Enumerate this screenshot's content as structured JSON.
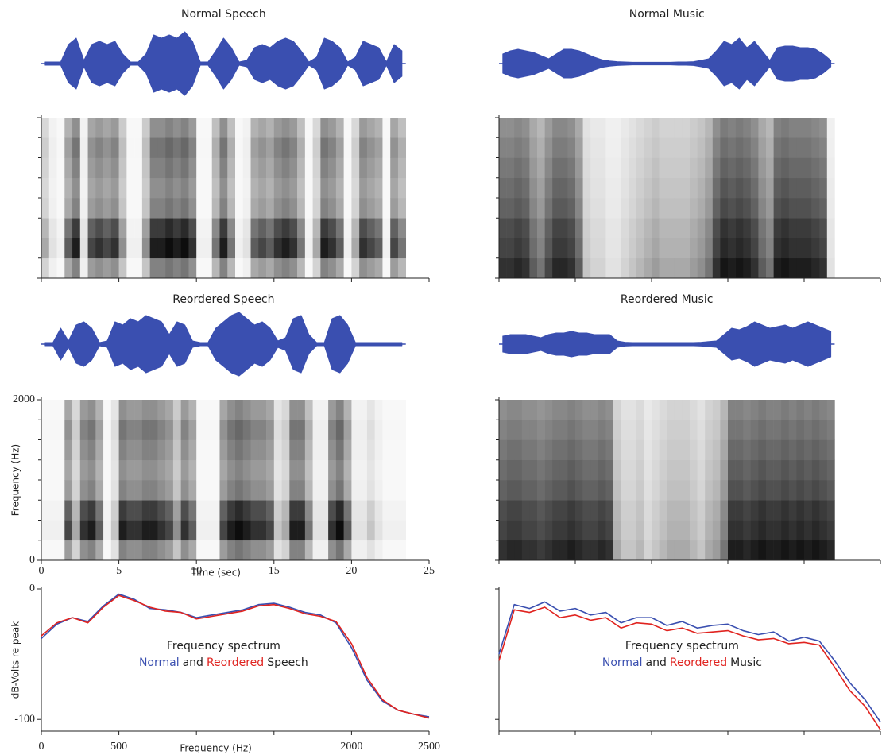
{
  "chart_data": [
    {
      "type": "waveform-spectrogram",
      "title": "Normal Speech",
      "color": "#3a4fb0",
      "time": [
        0,
        0.5,
        1,
        1.5,
        2,
        2.5,
        3,
        3.5,
        4,
        4.5,
        5,
        5.5,
        6,
        6.5,
        7,
        7.5,
        8,
        8.5,
        9,
        9.5,
        10,
        10.5,
        11,
        11.5,
        12,
        12.5,
        13,
        13.5,
        14,
        14.5,
        15,
        15.5,
        16,
        16.5,
        17,
        17.5,
        18,
        18.5,
        19,
        19.5,
        20,
        20.5,
        21,
        21.5,
        22,
        22.5,
        23
      ],
      "envelope": [
        0.05,
        0.05,
        0.05,
        0.6,
        0.8,
        0.1,
        0.6,
        0.7,
        0.6,
        0.7,
        0.3,
        0.05,
        0.05,
        0.3,
        0.9,
        0.8,
        0.9,
        0.8,
        1,
        0.7,
        0.05,
        0.05,
        0.4,
        0.8,
        0.5,
        0.05,
        0.1,
        0.5,
        0.6,
        0.5,
        0.7,
        0.8,
        0.7,
        0.4,
        0.05,
        0.2,
        0.8,
        0.7,
        0.5,
        0.05,
        0.2,
        0.7,
        0.6,
        0.5,
        0.05,
        0.6,
        0.4
      ],
      "intensity": [
        0.3,
        0.1,
        0.05,
        0.6,
        0.9,
        0.1,
        0.7,
        0.8,
        0.7,
        0.8,
        0.4,
        0.05,
        0.05,
        0.4,
        0.9,
        0.9,
        1,
        0.9,
        1,
        0.8,
        0.05,
        0.05,
        0.5,
        0.9,
        0.5,
        0.05,
        0.1,
        0.6,
        0.7,
        0.6,
        0.8,
        0.9,
        0.8,
        0.5,
        0.05,
        0.3,
        0.9,
        0.8,
        0.6,
        0.05,
        0.3,
        0.8,
        0.7,
        0.6,
        0.05,
        0.7,
        0.5
      ],
      "freq": [
        125,
        375,
        625,
        875,
        1125,
        1375,
        1625,
        1875
      ],
      "profile": [
        0.45,
        0.9,
        0.75,
        0.45,
        0.4,
        0.45,
        0.5,
        0.4
      ],
      "xlim": [
        0,
        25
      ],
      "ylim": [
        0,
        2000
      ],
      "xticks": [
        0,
        5,
        10,
        15,
        20,
        25
      ],
      "yticks": [
        0,
        2000
      ],
      "minor_yticks": [
        250,
        500,
        750,
        1000,
        1250,
        1500,
        1750
      ],
      "tick_labels": false
    },
    {
      "type": "waveform-spectrogram",
      "title": "Reordered Speech",
      "color": "#3a4fb0",
      "xlabel": "Time (sec)",
      "ylabel": "Frequency (Hz)",
      "time": [
        0,
        0.5,
        1,
        1.5,
        2,
        2.5,
        3,
        3.5,
        4,
        4.5,
        5,
        5.5,
        6,
        6.5,
        7,
        7.5,
        8,
        8.5,
        9,
        9.5,
        10,
        10.5,
        11,
        11.5,
        12,
        12.5,
        13,
        13.5,
        14,
        14.5,
        15,
        15.5,
        16,
        16.5,
        17,
        17.5,
        18,
        18.5,
        19,
        19.5,
        20,
        20.5,
        21,
        21.5,
        22,
        22.5,
        23
      ],
      "envelope": [
        0.05,
        0.05,
        0.5,
        0.1,
        0.6,
        0.7,
        0.5,
        0.05,
        0.1,
        0.7,
        0.6,
        0.8,
        0.7,
        0.9,
        0.8,
        0.7,
        0.3,
        0.7,
        0.6,
        0.1,
        0.05,
        0.05,
        0.5,
        0.7,
        0.9,
        1,
        0.8,
        0.6,
        0.7,
        0.5,
        0.1,
        0.2,
        0.8,
        0.9,
        0.3,
        0.05,
        0.05,
        0.8,
        0.9,
        0.6,
        0.05,
        0.05,
        0.05,
        0.05,
        0.05,
        0.05,
        0.05
      ],
      "intensity": [
        0.05,
        0.05,
        0.05,
        0.7,
        0.3,
        0.8,
        0.9,
        0.6,
        0.05,
        0.2,
        0.9,
        0.8,
        0.8,
        0.9,
        0.9,
        0.8,
        0.7,
        0.4,
        0.8,
        0.6,
        0.05,
        0.05,
        0.05,
        0.7,
        0.9,
        1,
        0.9,
        0.8,
        0.8,
        0.7,
        0.2,
        0.3,
        0.9,
        0.9,
        0.5,
        0.1,
        0.1,
        0.8,
        1,
        0.6,
        0.1,
        0.1,
        0.2,
        0.1,
        0.05,
        0.05,
        0.05
      ],
      "freq": [
        125,
        375,
        625,
        875,
        1125,
        1375,
        1625,
        1875
      ],
      "profile": [
        0.45,
        0.9,
        0.75,
        0.45,
        0.4,
        0.45,
        0.5,
        0.4
      ],
      "xlim": [
        0,
        25
      ],
      "ylim": [
        0,
        2000
      ],
      "xticks": [
        0,
        5,
        10,
        15,
        20,
        25
      ],
      "yticks": [
        0,
        2000
      ],
      "minor_yticks": [
        250,
        500,
        750,
        1000,
        1250,
        1500,
        1750
      ],
      "tick_labels": true
    },
    {
      "type": "waveform-spectrogram",
      "title": "Normal Music",
      "color": "#3a4fb0",
      "time": [
        0,
        0.5,
        1,
        1.5,
        2,
        2.5,
        3,
        3.5,
        4,
        4.5,
        5,
        5.5,
        6,
        6.5,
        7,
        7.5,
        8,
        8.5,
        9,
        9.5,
        10,
        10.5,
        11,
        11.5,
        12,
        12.5,
        13,
        13.5,
        14,
        14.5,
        15,
        15.5,
        16,
        16.5,
        17,
        17.5,
        18,
        18.5,
        19,
        19.5,
        20,
        20.5,
        21,
        21.5
      ],
      "envelope": [
        0.3,
        0.4,
        0.45,
        0.4,
        0.35,
        0.25,
        0.15,
        0.3,
        0.45,
        0.45,
        0.4,
        0.3,
        0.2,
        0.12,
        0.08,
        0.06,
        0.05,
        0.04,
        0.04,
        0.04,
        0.04,
        0.04,
        0.04,
        0.05,
        0.05,
        0.06,
        0.1,
        0.15,
        0.4,
        0.7,
        0.6,
        0.8,
        0.5,
        0.7,
        0.4,
        0.1,
        0.5,
        0.55,
        0.55,
        0.5,
        0.5,
        0.45,
        0.3,
        0.1
      ],
      "intensity": [
        0.8,
        0.8,
        0.85,
        0.8,
        0.6,
        0.5,
        0.7,
        0.85,
        0.85,
        0.8,
        0.6,
        0.2,
        0.15,
        0.15,
        0.1,
        0.1,
        0.15,
        0.2,
        0.25,
        0.3,
        0.35,
        0.3,
        0.3,
        0.3,
        0.3,
        0.35,
        0.4,
        0.5,
        0.8,
        0.95,
        0.9,
        0.95,
        0.9,
        0.8,
        0.6,
        0.5,
        0.9,
        0.95,
        0.9,
        0.9,
        0.9,
        0.85,
        0.8,
        0.1
      ],
      "freq": [
        125,
        375,
        625,
        875,
        1125,
        1375,
        1625,
        1875
      ],
      "profile": [
        0.9,
        0.8,
        0.75,
        0.65,
        0.6,
        0.55,
        0.5,
        0.45
      ],
      "xlim": [
        0,
        25
      ],
      "ylim": [
        0,
        2000
      ],
      "xticks": [
        0,
        5,
        10,
        15,
        20,
        25
      ],
      "yticks": [
        0,
        2000
      ],
      "minor_yticks": [
        250,
        500,
        750,
        1000,
        1250,
        1500,
        1750
      ],
      "tick_labels": false
    },
    {
      "type": "waveform-spectrogram",
      "title": "Reordered Music",
      "color": "#3a4fb0",
      "time": [
        0,
        0.5,
        1,
        1.5,
        2,
        2.5,
        3,
        3.5,
        4,
        4.5,
        5,
        5.5,
        6,
        6.5,
        7,
        7.5,
        8,
        8.5,
        9,
        9.5,
        10,
        10.5,
        11,
        11.5,
        12,
        12.5,
        13,
        13.5,
        14,
        14.5,
        15,
        15.5,
        16,
        16.5,
        17,
        17.5,
        18,
        18.5,
        19,
        19.5,
        20,
        20.5,
        21,
        21.5
      ],
      "envelope": [
        0.25,
        0.3,
        0.3,
        0.3,
        0.25,
        0.2,
        0.3,
        0.35,
        0.35,
        0.4,
        0.35,
        0.35,
        0.3,
        0.3,
        0.3,
        0.1,
        0.06,
        0.05,
        0.05,
        0.05,
        0.05,
        0.05,
        0.05,
        0.05,
        0.05,
        0.05,
        0.06,
        0.08,
        0.1,
        0.3,
        0.5,
        0.45,
        0.55,
        0.7,
        0.6,
        0.5,
        0.55,
        0.6,
        0.5,
        0.6,
        0.7,
        0.6,
        0.5,
        0.4
      ],
      "intensity": [
        0.8,
        0.85,
        0.85,
        0.8,
        0.8,
        0.75,
        0.8,
        0.85,
        0.85,
        0.9,
        0.85,
        0.8,
        0.8,
        0.85,
        0.8,
        0.3,
        0.2,
        0.2,
        0.25,
        0.15,
        0.2,
        0.25,
        0.3,
        0.3,
        0.3,
        0.25,
        0.2,
        0.3,
        0.35,
        0.5,
        0.9,
        0.9,
        0.85,
        0.9,
        0.95,
        0.9,
        0.9,
        0.95,
        0.9,
        0.95,
        0.9,
        0.95,
        0.9,
        0.85
      ],
      "freq": [
        125,
        375,
        625,
        875,
        1125,
        1375,
        1625,
        1875
      ],
      "profile": [
        0.9,
        0.8,
        0.75,
        0.65,
        0.6,
        0.55,
        0.5,
        0.45
      ],
      "xlim": [
        0,
        25
      ],
      "ylim": [
        0,
        2000
      ],
      "xticks": [
        0,
        5,
        10,
        15,
        20,
        25
      ],
      "yticks": [
        0,
        2000
      ],
      "minor_yticks": [
        250,
        500,
        750,
        1000,
        1250,
        1500,
        1750
      ],
      "tick_labels": false
    },
    {
      "type": "line",
      "annotation": "Frequency spectrum",
      "caption_parts": [
        "and",
        "Speech"
      ],
      "xlabel": "Frequency (Hz)",
      "ylabel": "dB-Volts re peak",
      "x": [
        0,
        100,
        200,
        300,
        400,
        500,
        600,
        700,
        800,
        900,
        1000,
        1100,
        1200,
        1300,
        1400,
        1500,
        1600,
        1700,
        1800,
        1900,
        2000,
        2100,
        2200,
        2300,
        2400,
        2500
      ],
      "series": [
        {
          "name": "Normal",
          "color": "#3a4fb0",
          "values": [
            -38,
            -27,
            -22,
            -25,
            -13,
            -4,
            -8,
            -15,
            -16,
            -18,
            -22,
            -20,
            -18,
            -16,
            -12,
            -11,
            -14,
            -18,
            -20,
            -26,
            -45,
            -70,
            -86,
            -93,
            -96,
            -98
          ]
        },
        {
          "name": "Reordered",
          "color": "#e0231f",
          "values": [
            -36,
            -26,
            -22,
            -26,
            -14,
            -5,
            -9,
            -14,
            -17,
            -18,
            -23,
            -21,
            -19,
            -17,
            -13,
            -12,
            -15,
            -19,
            -21,
            -25,
            -42,
            -68,
            -85,
            -93,
            -96,
            -99
          ]
        }
      ],
      "xlim": [
        0,
        2500
      ],
      "ylim": [
        -109,
        0
      ],
      "xticks": [
        0,
        500,
        2000,
        2500
      ],
      "minor_xticks": [
        1000,
        1500
      ],
      "yticks": [
        -100,
        0
      ],
      "tick_labels": true
    },
    {
      "type": "line",
      "annotation": "Frequency spectrum",
      "caption_parts": [
        "and",
        "Music"
      ],
      "x": [
        0,
        100,
        200,
        300,
        400,
        500,
        600,
        700,
        800,
        900,
        1000,
        1100,
        1200,
        1300,
        1400,
        1500,
        1600,
        1700,
        1800,
        1900,
        2000,
        2100,
        2200,
        2300,
        2400,
        2500
      ],
      "series": [
        {
          "name": "Normal",
          "color": "#3a4fb0",
          "values": [
            -50,
            -12,
            -15,
            -10,
            -17,
            -15,
            -20,
            -18,
            -26,
            -22,
            -22,
            -28,
            -25,
            -30,
            -28,
            -27,
            -32,
            -35,
            -33,
            -40,
            -37,
            -40,
            -55,
            -72,
            -85,
            -102
          ]
        },
        {
          "name": "Reordered",
          "color": "#e0231f",
          "values": [
            -55,
            -16,
            -18,
            -14,
            -22,
            -20,
            -24,
            -22,
            -30,
            -26,
            -27,
            -32,
            -30,
            -34,
            -33,
            -32,
            -36,
            -39,
            -38,
            -42,
            -41,
            -43,
            -60,
            -78,
            -90,
            -108
          ]
        }
      ],
      "xlim": [
        0,
        2500
      ],
      "ylim": [
        -109,
        0
      ],
      "xticks": [
        0,
        500,
        1000,
        1500,
        2000,
        2500
      ],
      "minor_xticks": [],
      "yticks": [
        -100,
        0
      ],
      "tick_labels": false
    }
  ]
}
